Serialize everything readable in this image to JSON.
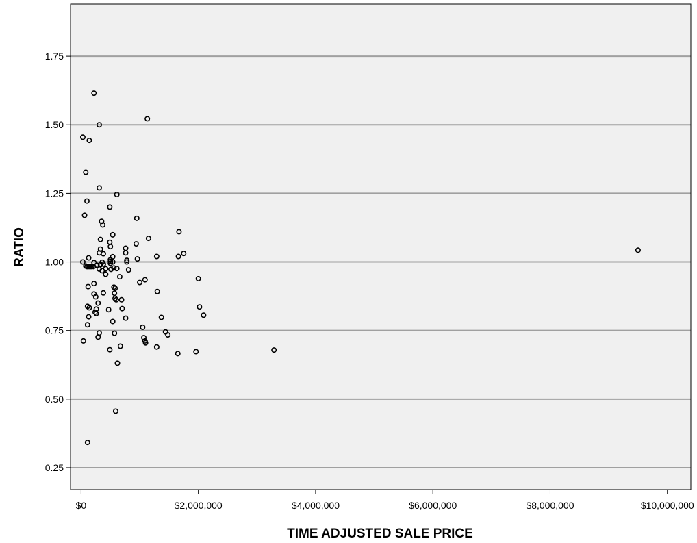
{
  "chart_data": {
    "type": "scatter",
    "title": "",
    "xlabel": "TIME ADJUSTED SALE PRICE",
    "ylabel": "RATIO",
    "xlim": [
      -180000,
      10400000
    ],
    "ylim": [
      0.17,
      1.94
    ],
    "xticks": [
      0,
      2000000,
      4000000,
      6000000,
      8000000,
      10000000
    ],
    "xtick_labels": [
      "$0",
      "$2,000,000",
      "$4,000,000",
      "$6,000,000",
      "$8,000,000",
      "$10,000,000"
    ],
    "yticks": [
      0.25,
      0.5,
      0.75,
      1.0,
      1.25,
      1.5,
      1.75
    ],
    "ytick_labels": [
      "0.25",
      "0.50",
      "0.75",
      "1.00",
      "1.25",
      "1.50",
      "1.75"
    ],
    "grid": "horizontal",
    "colors": {
      "plot_background": "#f0f0f0",
      "gridline": "#a0a0a0",
      "marker": "#000000"
    },
    "series": [
      {
        "marker": "hollow-circle",
        "points": [
          [
            220000,
            1.615
          ],
          [
            1130000,
            1.522
          ],
          [
            310000,
            1.5
          ],
          [
            30000,
            1.455
          ],
          [
            140000,
            1.443
          ],
          [
            80000,
            1.327
          ],
          [
            310000,
            1.27
          ],
          [
            610000,
            1.246
          ],
          [
            100000,
            1.222
          ],
          [
            490000,
            1.2
          ],
          [
            60000,
            1.17
          ],
          [
            950000,
            1.159
          ],
          [
            350000,
            1.148
          ],
          [
            370000,
            1.135
          ],
          [
            1670000,
            1.11
          ],
          [
            540000,
            1.099
          ],
          [
            1150000,
            1.086
          ],
          [
            330000,
            1.082
          ],
          [
            490000,
            1.072
          ],
          [
            940000,
            1.066
          ],
          [
            500000,
            1.056
          ],
          [
            760000,
            1.05
          ],
          [
            330000,
            1.047
          ],
          [
            1750000,
            1.031
          ],
          [
            760000,
            1.033
          ],
          [
            310000,
            1.033
          ],
          [
            380000,
            1.03
          ],
          [
            1290000,
            1.02
          ],
          [
            1660000,
            1.02
          ],
          [
            540000,
            1.019
          ],
          [
            130000,
            1.015
          ],
          [
            960000,
            1.011
          ],
          [
            500000,
            1.008
          ],
          [
            780000,
            1.006
          ],
          [
            500000,
            1.002
          ],
          [
            540000,
            1.0
          ],
          [
            30000,
            1.0
          ],
          [
            780000,
            1.0
          ],
          [
            360000,
            0.999
          ],
          [
            220000,
            0.998
          ],
          [
            500000,
            0.995
          ],
          [
            380000,
            0.992
          ],
          [
            330000,
            0.99
          ],
          [
            270000,
            0.988
          ],
          [
            80000,
            0.985
          ],
          [
            100000,
            0.983
          ],
          [
            120000,
            0.983
          ],
          [
            140000,
            0.983
          ],
          [
            160000,
            0.983
          ],
          [
            180000,
            0.983
          ],
          [
            210000,
            0.983
          ],
          [
            560000,
            0.978
          ],
          [
            610000,
            0.976
          ],
          [
            310000,
            0.974
          ],
          [
            420000,
            0.975
          ],
          [
            510000,
            0.973
          ],
          [
            810000,
            0.971
          ],
          [
            360000,
            0.968
          ],
          [
            420000,
            0.955
          ],
          [
            660000,
            0.946
          ],
          [
            2000000,
            0.939
          ],
          [
            1090000,
            0.935
          ],
          [
            1000000,
            0.925
          ],
          [
            220000,
            0.921
          ],
          [
            120000,
            0.91
          ],
          [
            560000,
            0.908
          ],
          [
            580000,
            0.904
          ],
          [
            1300000,
            0.892
          ],
          [
            380000,
            0.887
          ],
          [
            570000,
            0.886
          ],
          [
            220000,
            0.883
          ],
          [
            250000,
            0.873
          ],
          [
            580000,
            0.867
          ],
          [
            600000,
            0.862
          ],
          [
            690000,
            0.862
          ],
          [
            290000,
            0.85
          ],
          [
            110000,
            0.838
          ],
          [
            2020000,
            0.836
          ],
          [
            140000,
            0.833
          ],
          [
            260000,
            0.828
          ],
          [
            700000,
            0.83
          ],
          [
            470000,
            0.826
          ],
          [
            240000,
            0.817
          ],
          [
            260000,
            0.812
          ],
          [
            2090000,
            0.806
          ],
          [
            130000,
            0.8
          ],
          [
            1370000,
            0.798
          ],
          [
            760000,
            0.795
          ],
          [
            540000,
            0.783
          ],
          [
            110000,
            0.771
          ],
          [
            1050000,
            0.762
          ],
          [
            1440000,
            0.745
          ],
          [
            570000,
            0.74
          ],
          [
            310000,
            0.741
          ],
          [
            1480000,
            0.734
          ],
          [
            1070000,
            0.724
          ],
          [
            290000,
            0.726
          ],
          [
            40000,
            0.712
          ],
          [
            1090000,
            0.712
          ],
          [
            1100000,
            0.705
          ],
          [
            670000,
            0.693
          ],
          [
            1290000,
            0.69
          ],
          [
            3290000,
            0.679
          ],
          [
            490000,
            0.68
          ],
          [
            1960000,
            0.673
          ],
          [
            1650000,
            0.666
          ],
          [
            620000,
            0.631
          ],
          [
            590000,
            0.456
          ],
          [
            110000,
            0.342
          ],
          [
            9500000,
            1.043
          ]
        ]
      }
    ]
  }
}
